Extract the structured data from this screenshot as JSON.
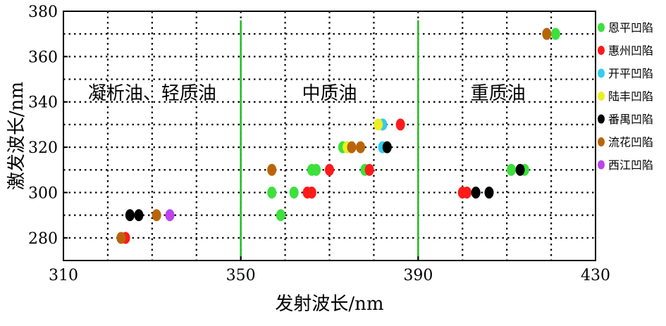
{
  "chart_data": {
    "type": "scatter",
    "title": "",
    "xlabel": "发射波长/nm",
    "ylabel": "激发波长/nm",
    "xlim": [
      310,
      430
    ],
    "ylim": [
      270,
      380
    ],
    "x_ticks": [
      310,
      350,
      390,
      430
    ],
    "y_ticks": [
      280,
      300,
      320,
      340,
      360,
      380
    ],
    "grid": true,
    "grid_style": "dotted",
    "legend_position": "right",
    "dividers": [
      {
        "x": 350,
        "color": "#22bb22"
      },
      {
        "x": 390,
        "color": "#22bb22"
      }
    ],
    "region_labels": [
      {
        "text": "凝析油、轻质油",
        "x": 330,
        "y": 344
      },
      {
        "text": "中质油",
        "x": 370,
        "y": 344
      },
      {
        "text": "重质油",
        "x": 408,
        "y": 344
      }
    ],
    "series": [
      {
        "name": "恩平凹陷",
        "color": "#3de03d",
        "points": [
          [
            357,
            300
          ],
          [
            359,
            290
          ],
          [
            362,
            300
          ],
          [
            366,
            310
          ],
          [
            367,
            310
          ],
          [
            373,
            320
          ],
          [
            374,
            320
          ],
          [
            378,
            310
          ],
          [
            411,
            310
          ],
          [
            414,
            310
          ],
          [
            421,
            370
          ]
        ]
      },
      {
        "name": "惠州凹陷",
        "color": "#ff1a1a",
        "points": [
          [
            324,
            280
          ],
          [
            365,
            300
          ],
          [
            366,
            300
          ],
          [
            370,
            310
          ],
          [
            379,
            310
          ],
          [
            386,
            330
          ],
          [
            400,
            300
          ],
          [
            401,
            300
          ]
        ]
      },
      {
        "name": "开平凹陷",
        "color": "#33ccee",
        "points": [
          [
            382,
            330
          ],
          [
            382,
            320
          ]
        ]
      },
      {
        "name": "陆丰凹陷",
        "color": "#eeee22",
        "points": [
          [
            374,
            320
          ],
          [
            381,
            330
          ]
        ]
      },
      {
        "name": "番禺凹陷",
        "color": "#000000",
        "points": [
          [
            325,
            290
          ],
          [
            327,
            290
          ],
          [
            383,
            320
          ],
          [
            403,
            300
          ],
          [
            406,
            300
          ],
          [
            413,
            310
          ]
        ]
      },
      {
        "name": "流花凹陷",
        "color": "#b8650a",
        "points": [
          [
            323,
            280
          ],
          [
            331,
            290
          ],
          [
            357,
            310
          ],
          [
            375,
            320
          ],
          [
            377,
            320
          ],
          [
            419,
            370
          ]
        ]
      },
      {
        "name": "西江凹陷",
        "color": "#bb44ee",
        "points": [
          [
            334,
            290
          ]
        ]
      }
    ]
  }
}
